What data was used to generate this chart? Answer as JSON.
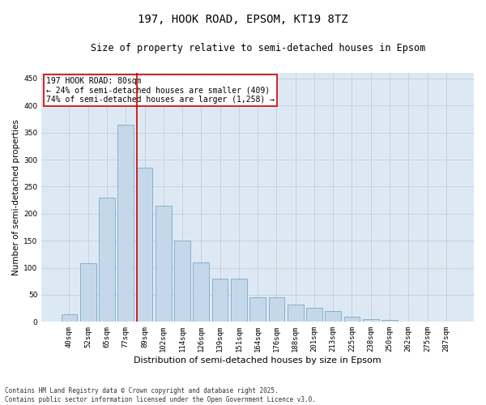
{
  "title_line1": "197, HOOK ROAD, EPSOM, KT19 8TZ",
  "title_line2": "Size of property relative to semi-detached houses in Epsom",
  "xlabel": "Distribution of semi-detached houses by size in Epsom",
  "ylabel": "Number of semi-detached properties",
  "footer_line1": "Contains HM Land Registry data © Crown copyright and database right 2025.",
  "footer_line2": "Contains public sector information licensed under the Open Government Licence v3.0.",
  "categories": [
    "40sqm",
    "52sqm",
    "65sqm",
    "77sqm",
    "89sqm",
    "102sqm",
    "114sqm",
    "126sqm",
    "139sqm",
    "151sqm",
    "164sqm",
    "176sqm",
    "188sqm",
    "201sqm",
    "213sqm",
    "225sqm",
    "238sqm",
    "250sqm",
    "262sqm",
    "275sqm",
    "287sqm"
  ],
  "values": [
    14,
    108,
    230,
    365,
    285,
    215,
    150,
    110,
    80,
    80,
    46,
    46,
    32,
    26,
    20,
    9,
    5,
    3,
    1,
    1,
    1
  ],
  "bar_color": "#c5d8ea",
  "bar_edge_color": "#7aaac8",
  "grid_color": "#cccccc",
  "background_color": "#dce9f5",
  "vline_color": "#cc0000",
  "annotation_title": "197 HOOK ROAD: 80sqm",
  "annotation_line1": "← 24% of semi-detached houses are smaller (409)",
  "annotation_line2": "74% of semi-detached houses are larger (1,258) →",
  "annotation_box_color": "#cc0000",
  "ylim": [
    0,
    460
  ],
  "yticks": [
    0,
    50,
    100,
    150,
    200,
    250,
    300,
    350,
    400,
    450
  ],
  "fig_bg": "#ffffff",
  "title1_fontsize": 10,
  "title2_fontsize": 8.5,
  "ylabel_fontsize": 7.5,
  "xlabel_fontsize": 8,
  "tick_fontsize": 6.5,
  "footer_fontsize": 5.5,
  "ann_fontsize": 7
}
